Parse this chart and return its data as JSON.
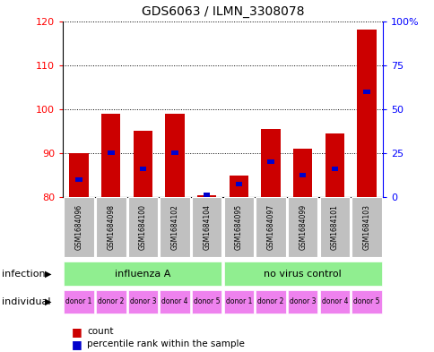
{
  "title": "GDS6063 / ILMN_3308078",
  "samples": [
    "GSM1684096",
    "GSM1684098",
    "GSM1684100",
    "GSM1684102",
    "GSM1684104",
    "GSM1684095",
    "GSM1684097",
    "GSM1684099",
    "GSM1684101",
    "GSM1684103"
  ],
  "red_values": [
    90,
    99,
    95,
    99,
    80.5,
    85,
    95.5,
    91,
    94.5,
    118
  ],
  "blue_values": [
    84,
    90,
    86.5,
    90,
    80.5,
    83,
    88,
    85,
    86.5,
    104
  ],
  "ymin": 80,
  "ymax": 120,
  "yticks": [
    80,
    90,
    100,
    110,
    120
  ],
  "y2ticks": [
    0,
    25,
    50,
    75,
    100
  ],
  "y2labels": [
    "0",
    "25",
    "50",
    "75",
    "100%"
  ],
  "infection_groups": [
    [
      "influenza A",
      0,
      5
    ],
    [
      "no virus control",
      5,
      10
    ]
  ],
  "infection_color": "#90EE90",
  "individual_labels": [
    "donor 1",
    "donor 2",
    "donor 3",
    "donor 4",
    "donor 5",
    "donor 1",
    "donor 2",
    "donor 3",
    "donor 4",
    "donor 5"
  ],
  "individual_color": "#EE82EE",
  "bar_width": 0.6,
  "red_color": "#CC0000",
  "blue_color": "#0000CC",
  "sample_bg_color": "#C0C0C0",
  "legend_count_color": "#CC0000",
  "legend_pct_color": "#0000CC"
}
